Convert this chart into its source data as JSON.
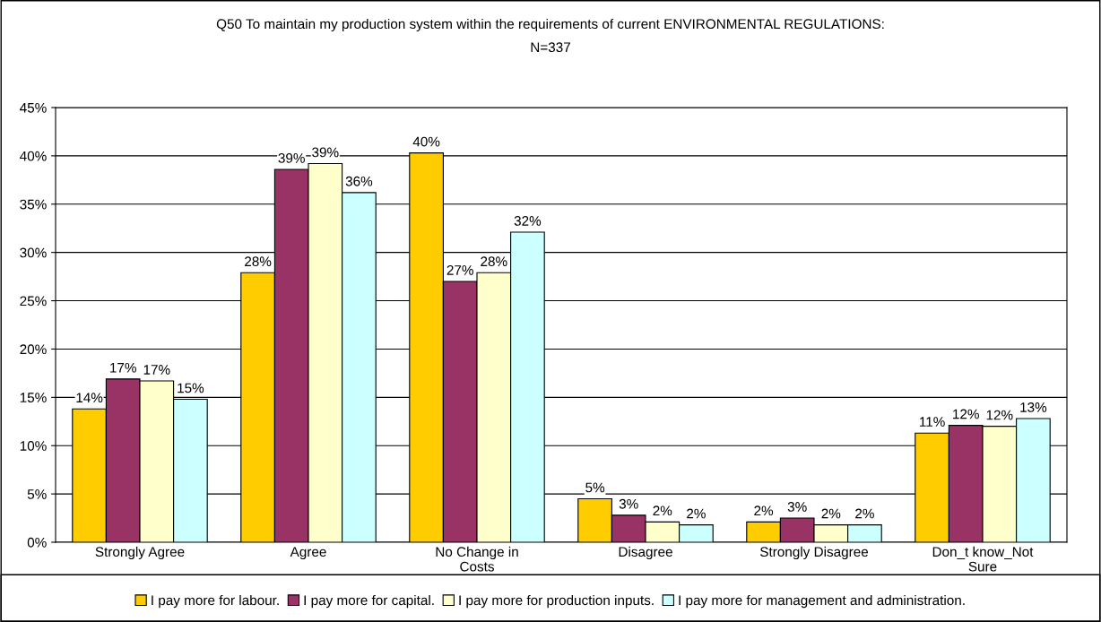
{
  "chart_data": {
    "type": "bar",
    "title": "Q50 To maintain my production system within the requirements of current ENVIRONMENTAL REGULATIONS:",
    "subtitle": "N=337",
    "categories": [
      "Strongly Agree",
      "Agree",
      "No Change in\nCosts",
      "Disagree",
      "Strongly Disagree",
      "Don_t know_Not\nSure"
    ],
    "series": [
      {
        "name": "I pay more for labour.",
        "color": "#ffcc00",
        "values": [
          13.8,
          27.9,
          40.3,
          4.5,
          2.1,
          11.3
        ],
        "value_labels": [
          "14%",
          "28%",
          "40%",
          "5%",
          "2%",
          "11%"
        ]
      },
      {
        "name": "I pay more for capital.",
        "color": "#993366",
        "values": [
          16.9,
          38.6,
          27.0,
          2.8,
          2.5,
          12.1
        ],
        "value_labels": [
          "17%",
          "39%",
          "27%",
          "3%",
          "3%",
          "12%"
        ]
      },
      {
        "name": "I pay more for production inputs.",
        "color": "#ffffcc",
        "values": [
          16.7,
          39.2,
          27.9,
          2.1,
          1.8,
          12.0
        ],
        "value_labels": [
          "17%",
          "39%",
          "28%",
          "2%",
          "2%",
          "12%"
        ]
      },
      {
        "name": "I pay more for management and administration.",
        "color": "#ccffff",
        "values": [
          14.8,
          36.2,
          32.1,
          1.8,
          1.8,
          12.8
        ],
        "value_labels": [
          "15%",
          "36%",
          "32%",
          "2%",
          "2%",
          "13%"
        ]
      }
    ],
    "ylim": [
      0,
      45
    ],
    "yticks": [
      {
        "value": 0,
        "label": "0%"
      },
      {
        "value": 5,
        "label": "5%"
      },
      {
        "value": 10,
        "label": "10%"
      },
      {
        "value": 15,
        "label": "15%"
      },
      {
        "value": 20,
        "label": "20%"
      },
      {
        "value": 25,
        "label": "25%"
      },
      {
        "value": 30,
        "label": "30%"
      },
      {
        "value": 35,
        "label": "35%"
      },
      {
        "value": 40,
        "label": "40%"
      },
      {
        "value": 45,
        "label": "45%"
      }
    ],
    "grid": "y",
    "legend": "bottom"
  }
}
